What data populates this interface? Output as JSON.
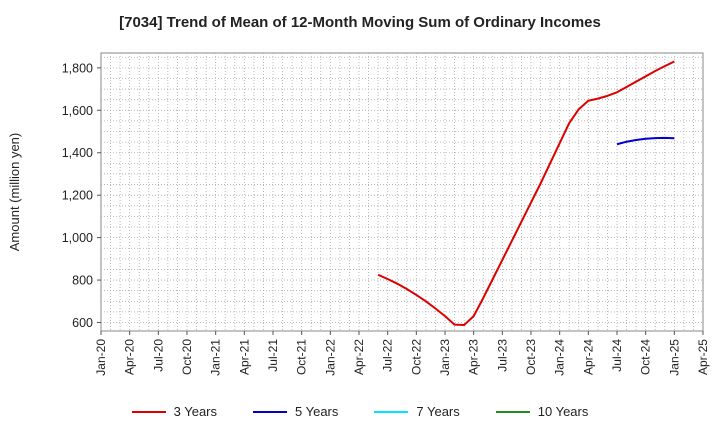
{
  "title": "[7034]  Trend of Mean of 12-Month Moving Sum of Ordinary Incomes",
  "chart_data": {
    "type": "line",
    "title": "[7034]  Trend of Mean of 12-Month Moving Sum of Ordinary Incomes",
    "xlabel": "",
    "ylabel": "Amount (million yen)",
    "ylim": [
      560,
      1870
    ],
    "yticks": [
      600,
      800,
      1000,
      1200,
      1400,
      1600,
      1800
    ],
    "ytick_labels": [
      "600",
      "800",
      "1,000",
      "1,200",
      "1,400",
      "1,600",
      "1,800"
    ],
    "xtick_labels": [
      "Jan-20",
      "Apr-20",
      "Jul-20",
      "Oct-20",
      "Jan-21",
      "Apr-21",
      "Jul-21",
      "Oct-21",
      "Jan-22",
      "Apr-22",
      "Jul-22",
      "Oct-22",
      "Jan-23",
      "Apr-23",
      "Jul-23",
      "Oct-23",
      "Jan-24",
      "Apr-24",
      "Jul-24",
      "Oct-24",
      "Jan-25",
      "Apr-25"
    ],
    "grid": true,
    "legend_position": "bottom",
    "series": [
      {
        "name": "3 Years",
        "color": "#dd0000",
        "points": [
          [
            "2022-06",
            825
          ],
          [
            "2022-07",
            805
          ],
          [
            "2022-08",
            783
          ],
          [
            "2022-09",
            758
          ],
          [
            "2022-10",
            730
          ],
          [
            "2022-11",
            700
          ],
          [
            "2022-12",
            666
          ],
          [
            "2023-01",
            630
          ],
          [
            "2023-02",
            590
          ],
          [
            "2023-03",
            588
          ],
          [
            "2023-04",
            630
          ],
          [
            "2023-05",
            715
          ],
          [
            "2023-06",
            805
          ],
          [
            "2023-07",
            895
          ],
          [
            "2023-08",
            985
          ],
          [
            "2023-09",
            1075
          ],
          [
            "2023-10",
            1165
          ],
          [
            "2023-11",
            1255
          ],
          [
            "2023-12",
            1350
          ],
          [
            "2024-01",
            1445
          ],
          [
            "2024-02",
            1540
          ],
          [
            "2024-03",
            1605
          ],
          [
            "2024-04",
            1645
          ],
          [
            "2024-05",
            1655
          ],
          [
            "2024-06",
            1668
          ],
          [
            "2024-07",
            1685
          ],
          [
            "2024-08",
            1710
          ],
          [
            "2024-09",
            1735
          ],
          [
            "2024-10",
            1760
          ],
          [
            "2024-11",
            1785
          ],
          [
            "2024-12",
            1808
          ],
          [
            "2025-01",
            1830
          ]
        ]
      },
      {
        "name": "5 Years",
        "color": "#0000cc",
        "points": [
          [
            "2024-07",
            1440
          ],
          [
            "2024-08",
            1452
          ],
          [
            "2024-09",
            1460
          ],
          [
            "2024-10",
            1466
          ],
          [
            "2024-11",
            1469
          ],
          [
            "2024-12",
            1470
          ],
          [
            "2025-01",
            1468
          ]
        ]
      },
      {
        "name": "7 Years",
        "color": "#00e5ff",
        "points": []
      },
      {
        "name": "10 Years",
        "color": "#228b22",
        "points": []
      }
    ]
  }
}
